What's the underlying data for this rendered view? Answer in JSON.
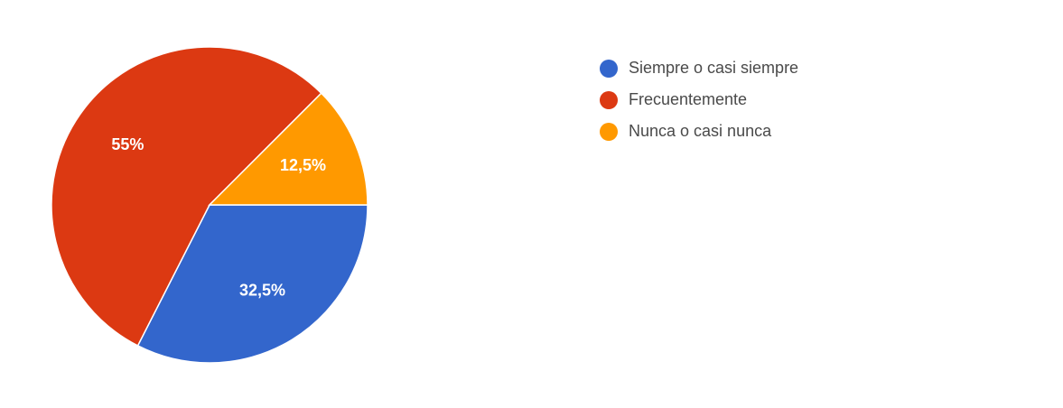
{
  "chart_data": {
    "type": "pie",
    "title": "",
    "legend_position": "right",
    "slices": [
      {
        "label": "Siempre o casi siempre",
        "value": 32.5,
        "display": "32,5%",
        "color": "#3366cc"
      },
      {
        "label": "Frecuentemente",
        "value": 55,
        "display": "55%",
        "color": "#dc3912"
      },
      {
        "label": "Nunca o casi nunca",
        "value": 12.5,
        "display": "12,5%",
        "color": "#ff9900"
      }
    ]
  }
}
